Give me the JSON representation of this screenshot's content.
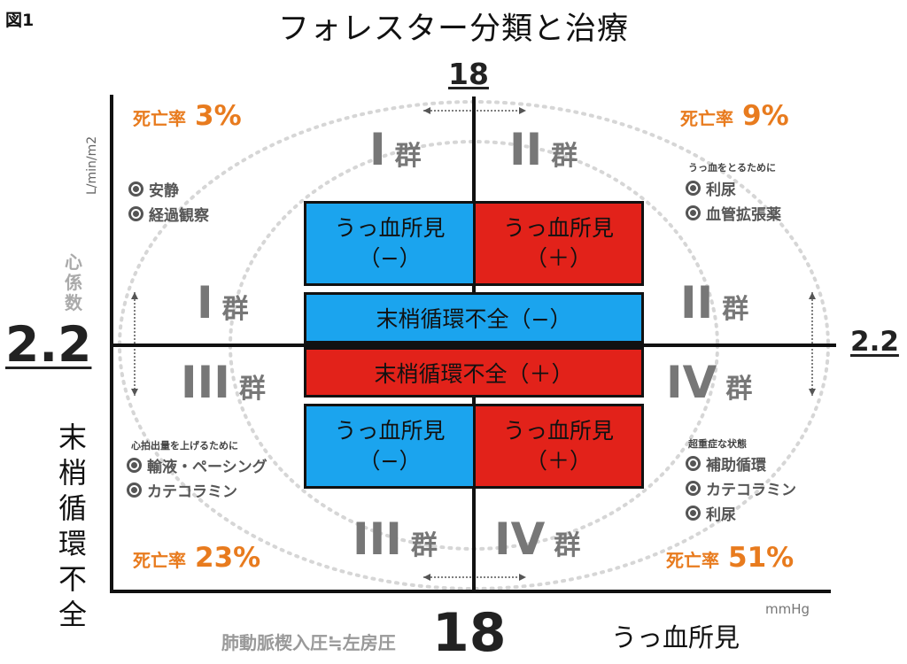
{
  "figure_label": "図1",
  "title": "フォレスター分類と治療",
  "axes": {
    "x_tick": "18",
    "y_tick": "2.2",
    "x_label": "肺動脈楔入圧≒左房圧",
    "x_unit": "mmHg",
    "y_label": "心係数",
    "y_unit": "L/min/m2",
    "left_vertical_label": "末梢循環不全",
    "bottom_right_label": "うっ血所見"
  },
  "quadrants": {
    "I": {
      "rate_label": "死亡率",
      "rate_value": "3%",
      "group_mark": "I",
      "group_suffix": "群",
      "treatment": [
        "安静",
        "経過観察"
      ]
    },
    "II": {
      "rate_label": "死亡率",
      "rate_value": "9%",
      "group_mark": "II",
      "group_suffix": "群",
      "treatment_note": "うっ血をとるために",
      "treatment": [
        "利尿",
        "血管拡張薬"
      ]
    },
    "III": {
      "rate_label": "死亡率",
      "rate_value": "23%",
      "group_mark": "III",
      "group_suffix": "群",
      "treatment_note": "心拍出量を上げるために",
      "treatment": [
        "輸液・ペーシング",
        "カテコラミン"
      ]
    },
    "IV": {
      "rate_label": "死亡率",
      "rate_value": "51%",
      "group_mark": "IV",
      "group_suffix": "群",
      "treatment_note": "超重症な状態",
      "treatment": [
        "補助循環",
        "カテコラミン",
        "利尿"
      ]
    }
  },
  "boxes": {
    "congestion_top_neg": {
      "line1": "うっ血所見",
      "line2": "（−）"
    },
    "congestion_top_pos": {
      "line1": "うっ血所見",
      "line2": "（＋）"
    },
    "perfusion_neg": "末梢循環不全（−）",
    "perfusion_pos": "末梢循環不全（＋）",
    "congestion_bottom_neg": {
      "line1": "うっ血所見",
      "line2": "（−）"
    },
    "congestion_bottom_pos": {
      "line1": "うっ血所見",
      "line2": "（＋）"
    }
  },
  "colors": {
    "no_issue": "#1ba4ee",
    "issue": "#e2221a",
    "rate": "#e87b1e",
    "group": "#777777"
  }
}
